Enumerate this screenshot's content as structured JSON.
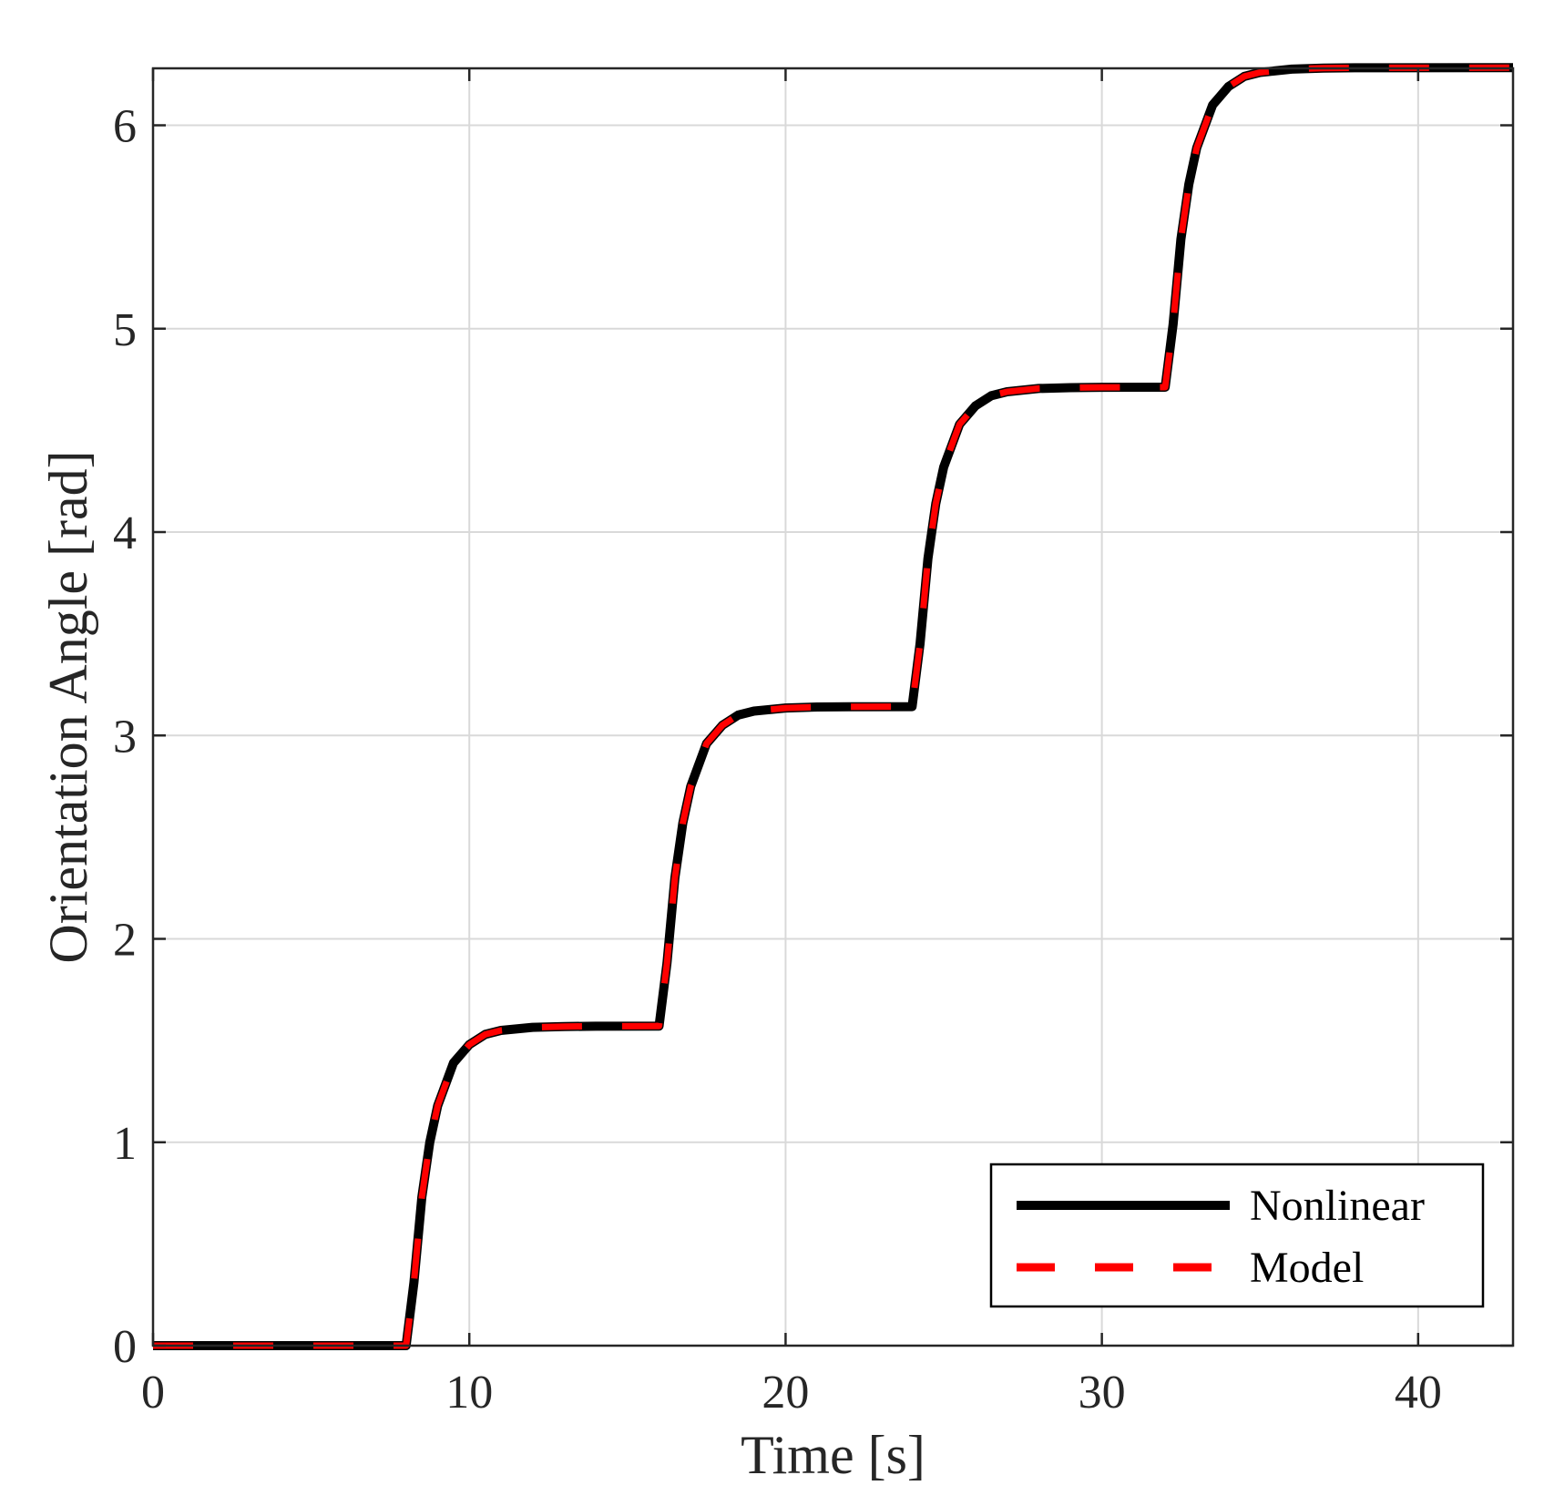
{
  "chart_data": {
    "type": "line",
    "title": "",
    "xlabel": "Time [s]",
    "ylabel": "Orientation Angle [rad]",
    "xlim": [
      0,
      43
    ],
    "ylim": [
      0,
      6.28
    ],
    "x_ticks": [
      0,
      10,
      20,
      30,
      40
    ],
    "y_ticks": [
      0,
      1,
      2,
      3,
      4,
      5,
      6
    ],
    "grid": true,
    "legend": {
      "position": "bottom-right"
    },
    "series": [
      {
        "name": "Nonlinear",
        "color": "#000000",
        "style": "solid",
        "x": [
          0,
          8,
          8.25,
          8.5,
          8.75,
          9,
          9.5,
          10,
          10.5,
          11,
          12,
          13,
          14,
          16,
          16.25,
          16.5,
          16.75,
          17,
          17.5,
          18,
          18.5,
          19,
          20,
          21,
          22,
          24,
          24.25,
          24.5,
          24.75,
          25,
          25.5,
          26,
          26.5,
          27,
          28,
          29,
          30,
          32,
          32.25,
          32.5,
          32.75,
          33,
          33.5,
          34,
          34.5,
          35,
          36,
          37,
          38,
          43
        ],
        "y": [
          0,
          0,
          0.31,
          0.73,
          1.0,
          1.18,
          1.39,
          1.48,
          1.53,
          1.55,
          1.565,
          1.569,
          1.5705,
          1.5708,
          1.88,
          2.3,
          2.57,
          2.75,
          2.96,
          3.05,
          3.1,
          3.12,
          3.135,
          3.14,
          3.1414,
          3.1416,
          3.45,
          3.87,
          4.14,
          4.32,
          4.53,
          4.62,
          4.67,
          4.69,
          4.706,
          4.71,
          4.712,
          4.7124,
          5.02,
          5.44,
          5.71,
          5.89,
          6.1,
          6.19,
          6.24,
          6.26,
          6.276,
          6.281,
          6.2828,
          6.2832
        ]
      },
      {
        "name": "Model",
        "color": "#ff0000",
        "style": "dashed",
        "x": [
          0,
          8,
          8.25,
          8.5,
          8.75,
          9,
          9.5,
          10,
          10.5,
          11,
          12,
          13,
          14,
          16,
          16.25,
          16.5,
          16.75,
          17,
          17.5,
          18,
          18.5,
          19,
          20,
          21,
          22,
          24,
          24.25,
          24.5,
          24.75,
          25,
          25.5,
          26,
          26.5,
          27,
          28,
          29,
          30,
          32,
          32.25,
          32.5,
          32.75,
          33,
          33.5,
          34,
          34.5,
          35,
          36,
          37,
          38,
          43
        ],
        "y": [
          0,
          0,
          0.31,
          0.73,
          1.0,
          1.18,
          1.39,
          1.48,
          1.53,
          1.55,
          1.565,
          1.569,
          1.5705,
          1.5708,
          1.88,
          2.3,
          2.57,
          2.75,
          2.96,
          3.05,
          3.1,
          3.12,
          3.135,
          3.14,
          3.1414,
          3.1416,
          3.45,
          3.87,
          4.14,
          4.32,
          4.53,
          4.62,
          4.67,
          4.69,
          4.706,
          4.71,
          4.712,
          4.7124,
          5.02,
          5.44,
          5.71,
          5.89,
          6.1,
          6.19,
          6.24,
          6.26,
          6.276,
          6.281,
          6.2828,
          6.2832
        ]
      }
    ]
  }
}
